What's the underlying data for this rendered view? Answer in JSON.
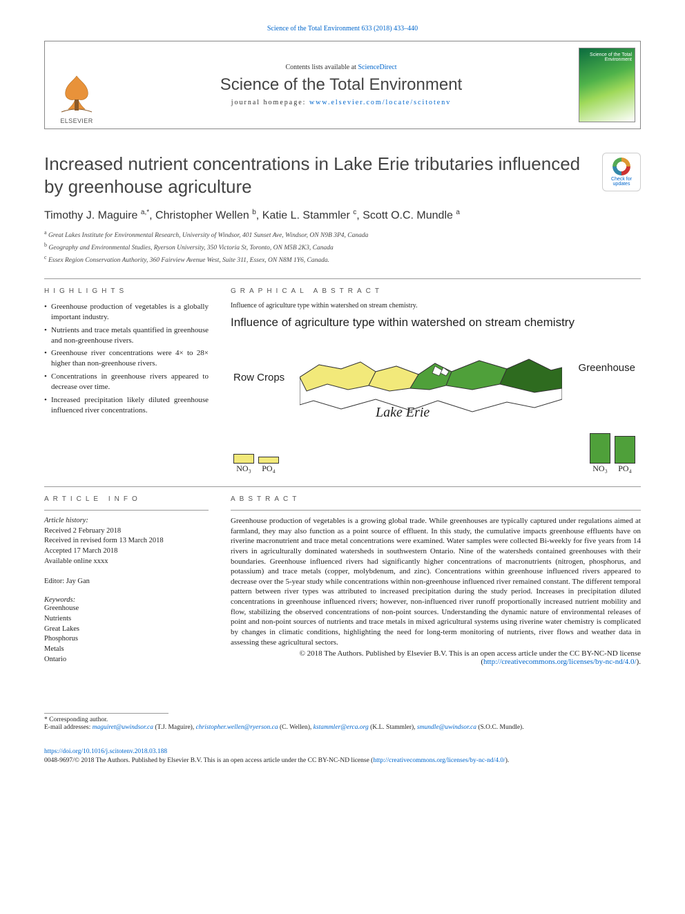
{
  "citation_header": "Science of the Total Environment 633 (2018) 433–440",
  "masthead": {
    "contents_line_prefix": "Contents lists available at ",
    "contents_link": "ScienceDirect",
    "journal_name": "Science of the Total Environment",
    "homepage_prefix": "journal homepage: ",
    "homepage_url": "www.elsevier.com/locate/scitotenv",
    "publisher_word": "ELSEVIER",
    "cover_text": "Science of the Total Environment"
  },
  "updates_badge": {
    "line1": "Check for",
    "line2": "updates"
  },
  "title": "Increased nutrient concentrations in Lake Erie tributaries influenced by greenhouse agriculture",
  "authors_html": "Timothy J. Maguire <sup>a,*</sup>, Christopher Wellen <sup>b</sup>, Katie L. Stammler <sup>c</sup>, Scott O.C. Mundle <sup>a</sup>",
  "affiliations": [
    {
      "sup": "a",
      "text": "Great Lakes Institute for Environmental Research, University of Windsor, 401 Sunset Ave, Windsor, ON N9B 3P4, Canada"
    },
    {
      "sup": "b",
      "text": "Geography and Environmental Studies, Ryerson University, 350 Victoria St, Toronto, ON M5B 2K3, Canada"
    },
    {
      "sup": "c",
      "text": "Essex Region Conservation Authority, 360 Fairview Avenue West, Suite 311, Essex, ON N8M 1Y6, Canada."
    }
  ],
  "section_headings": {
    "highlights": "HIGHLIGHTS",
    "graphical": "GRAPHICAL ABSTRACT",
    "article_info": "ARTICLE INFO",
    "abstract": "ABSTRACT"
  },
  "highlights": [
    "Greenhouse production of vegetables is a globally important industry.",
    "Nutrients and trace metals quantified in greenhouse and non-greenhouse rivers.",
    "Greenhouse river concentrations were 4× to 28× higher than non-greenhouse rivers.",
    "Concentrations in greenhouse rivers appeared to decrease over time.",
    "Increased precipitation likely diluted greenhouse influenced river concentrations."
  ],
  "graphical_abstract": {
    "caption": "Influence of agriculture type within watershed on stream chemistry.",
    "figure_title": "Influence of agriculture type within watershed on stream chemistry",
    "label_rowcrops": "Row Crops",
    "label_greenhouse": "Greenhouse",
    "label_lake": "Lake Erie",
    "bars_left": {
      "color": "#f2e97a",
      "NO3_height": 14,
      "PO4_height": 10
    },
    "bars_right": {
      "color": "#4fa03a",
      "NO3_height": 44,
      "PO4_height": 40
    },
    "map_colors": {
      "rowcrop": "#f2e97a",
      "greenhouse": "#4fa03a",
      "dark_greenhouse": "#2e6b1f",
      "water": "#ffffff",
      "outline": "#333333"
    },
    "bar_labels": {
      "no3": "NO₃",
      "po4": "PO₄"
    }
  },
  "article_info": {
    "history_head": "Article history:",
    "history": [
      "Received 2 February 2018",
      "Received in revised form 13 March 2018",
      "Accepted 17 March 2018",
      "Available online xxxx"
    ],
    "editor_line": "Editor: Jay Gan",
    "keywords_head": "Keywords:",
    "keywords": [
      "Greenhouse",
      "Nutrients",
      "Great Lakes",
      "Phosphorus",
      "Metals",
      "Ontario"
    ]
  },
  "abstract": "Greenhouse production of vegetables is a growing global trade. While greenhouses are typically captured under regulations aimed at farmland, they may also function as a point source of effluent. In this study, the cumulative impacts greenhouse effluents have on riverine macronutrient and trace metal concentrations were examined. Water samples were collected Bi-weekly for five years from 14 rivers in agriculturally dominated watersheds in southwestern Ontario. Nine of the watersheds contained greenhouses with their boundaries. Greenhouse influenced rivers had significantly higher concentrations of macronutrients (nitrogen, phosphorus, and potassium) and trace metals (copper, molybdenum, and zinc). Concentrations within greenhouse influenced rivers appeared to decrease over the 5-year study while concentrations within non-greenhouse influenced river remained constant. The different temporal pattern between river types was attributed to increased precipitation during the study period. Increases in precipitation diluted concentrations in greenhouse influenced rivers; however, non-influenced river runoff proportionally increased nutrient mobility and flow, stabilizing the observed concentrations of non-point sources. Understanding the dynamic nature of environmental releases of point and non-point sources of nutrients and trace metals in mixed agricultural systems using riverine water chemistry is complicated by changes in climatic conditions, highlighting the need for long-term monitoring of nutrients, river flows and weather data in assessing these agricultural sectors.",
  "license": {
    "copyright": "© 2018 The Authors. Published by Elsevier B.V. This is an open access article under the CC BY-NC-ND license (",
    "url_text": "http://creativecommons.org/licenses/by-nc-nd/4.0/",
    "close": ")."
  },
  "footer": {
    "corresponding": "* Corresponding author.",
    "email_label": "E-mail addresses:",
    "emails": [
      {
        "addr": "maguiret@uwindsor.ca",
        "name": "(T.J. Maguire)"
      },
      {
        "addr": "christopher.wellen@ryerson.ca",
        "name": "(C. Wellen)"
      },
      {
        "addr": "kstammler@erca.org",
        "name": "(K.L. Stammler)"
      },
      {
        "addr": "smundle@uwindsor.ca",
        "name": "(S.O.C. Mundle)."
      }
    ],
    "doi": "https://doi.org/10.1016/j.scitotenv.2018.03.188",
    "issn_line_prefix": "0048-9697/© 2018 The Authors. Published by Elsevier B.V. This is an open access article under the CC BY-NC-ND license (",
    "issn_url": "http://creativecommons.org/licenses/by-nc-nd/4.0/",
    "issn_close": ")."
  }
}
